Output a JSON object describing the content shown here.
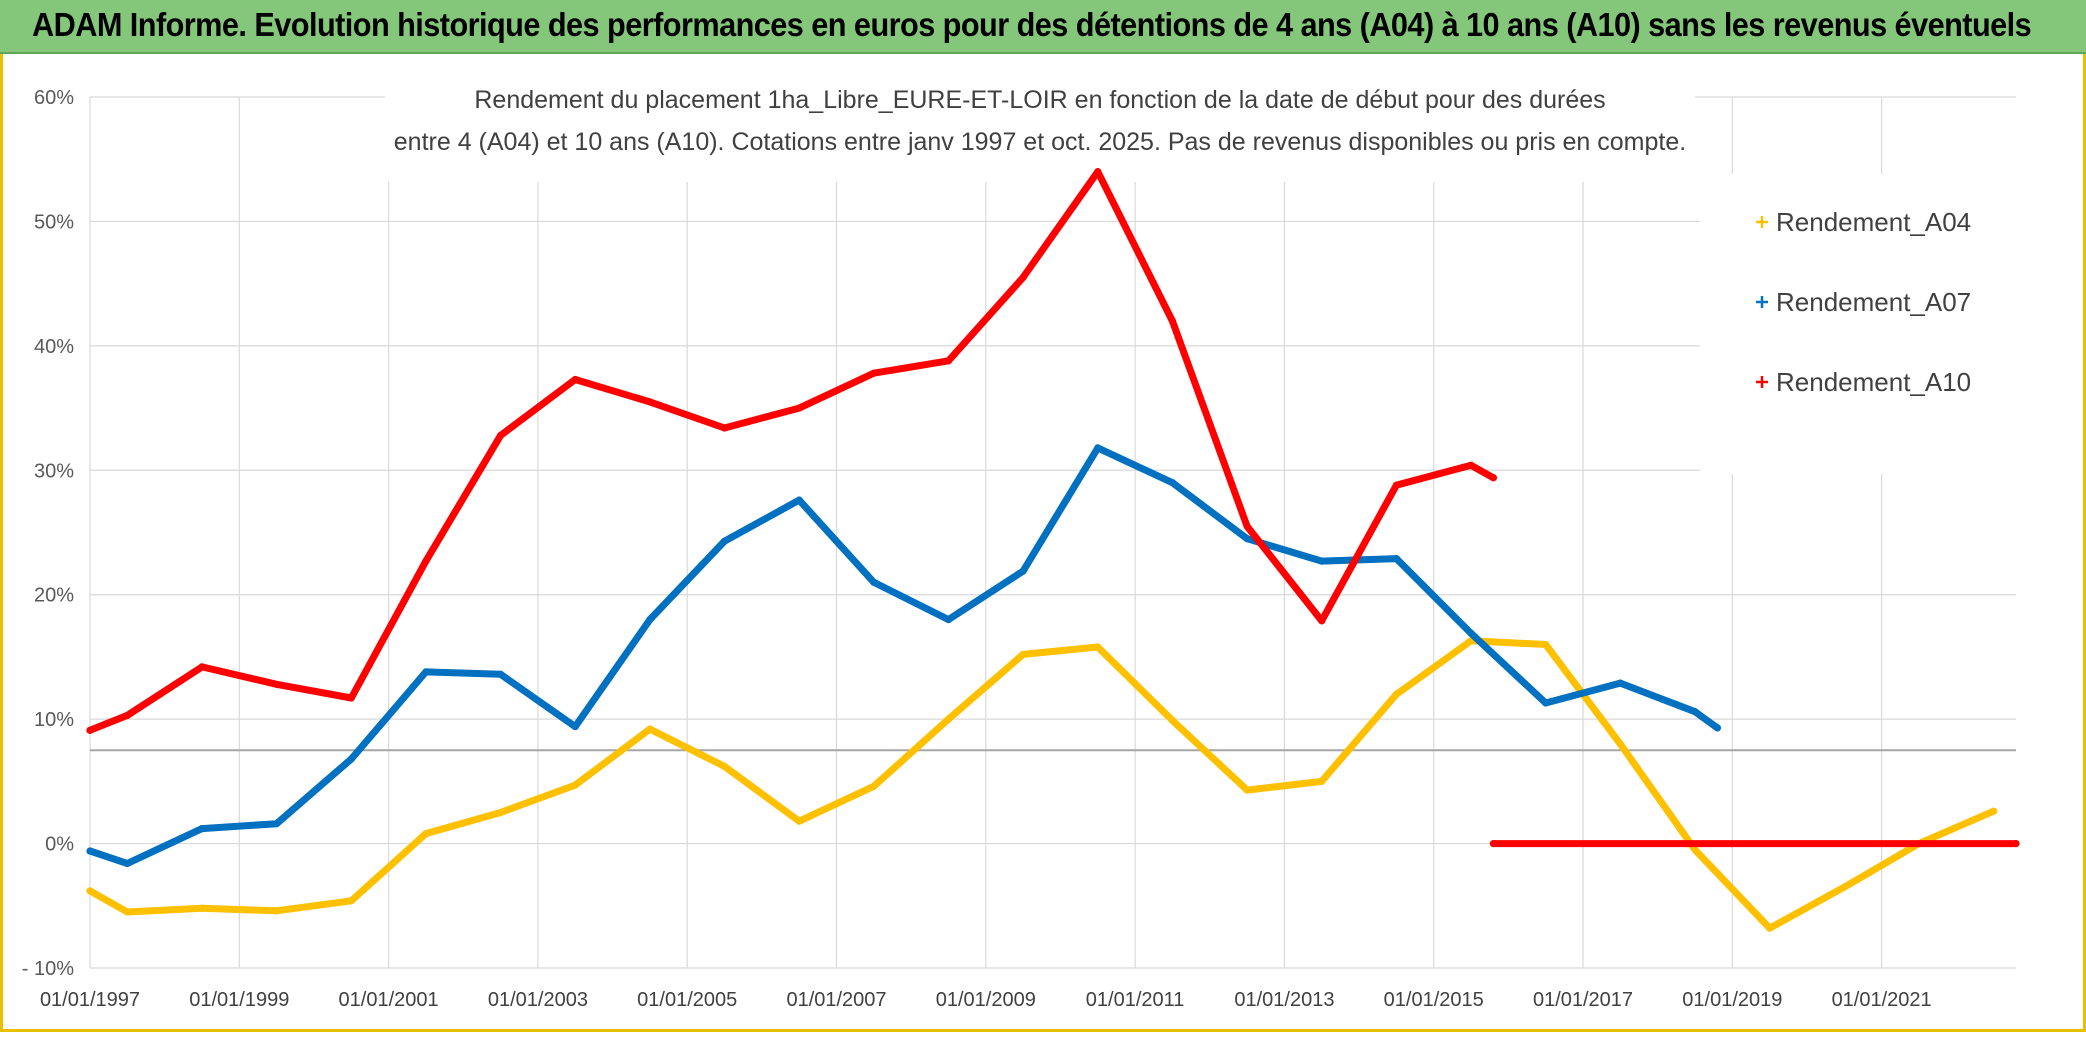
{
  "banner": {
    "title": "ADAM Informe. Evolution historique des performances en euros pour des détentions de 4 ans (A04) à 10 ans (A10) sans les revenus éventuels"
  },
  "colors": {
    "banner": "#84c77b",
    "a04": "#ffc000",
    "a07": "#0070c0",
    "a10": "#ff0000",
    "frame": "#e8c000"
  },
  "chart_data": {
    "type": "line",
    "title_line1": "Rendement du placement 1ha_Libre_EURE-ET-LOIR en fonction de la date de début pour des durées",
    "title_line2": "entre 4 (A04) et 10 ans (A10). Cotations entre janv 1997 et oct. 2025. Pas de revenus disponibles ou pris en compte.",
    "xlabel": "",
    "ylabel": "",
    "x_range": [
      1997.0,
      2022.8
    ],
    "ylim": [
      -10,
      60
    ],
    "yticks": [
      -10,
      0,
      10,
      20,
      30,
      40,
      50,
      60
    ],
    "ytick_labels": [
      "- 10%",
      "0%",
      "10%",
      "20%",
      "30%",
      "40%",
      "50%",
      "60%"
    ],
    "xticks": [
      1997,
      1999,
      2001,
      2003,
      2005,
      2007,
      2009,
      2011,
      2013,
      2015,
      2017,
      2019,
      2021
    ],
    "xtick_labels": [
      "01/01/1997",
      "01/01/1999",
      "01/01/2001",
      "01/01/2003",
      "01/01/2005",
      "01/01/2007",
      "01/01/2009",
      "01/01/2011",
      "01/01/2013",
      "01/01/2015",
      "01/01/2017",
      "01/01/2019",
      "01/01/2021"
    ],
    "reference_line_y": 7.5,
    "grid": true,
    "legend_position": "right",
    "series": [
      {
        "name": "Rendement_A04",
        "color_key": "a04",
        "x": [
          1997.0,
          1997.5,
          1998.5,
          1999.5,
          2000.5,
          2001.5,
          2002.5,
          2003.5,
          2004.5,
          2005.5,
          2006.5,
          2007.5,
          2008.5,
          2009.5,
          2010.5,
          2011.5,
          2012.5,
          2013.5,
          2014.5,
          2015.5,
          2016.5,
          2017.5,
          2018.5,
          2019.5,
          2020.5,
          2021.5,
          2022.5
        ],
        "y": [
          -3.8,
          -5.5,
          -5.2,
          -5.4,
          -4.6,
          0.8,
          2.5,
          4.7,
          9.2,
          6.2,
          1.8,
          4.6,
          10.0,
          15.2,
          15.8,
          9.9,
          4.3,
          5.0,
          12.0,
          16.3,
          16.0,
          8.0,
          -0.5,
          -6.8,
          -3.5,
          0.0,
          2.6
        ]
      },
      {
        "name": "Rendement_A07",
        "color_key": "a07",
        "x": [
          1997.0,
          1997.5,
          1998.5,
          1999.5,
          2000.5,
          2001.5,
          2002.5,
          2003.5,
          2004.5,
          2005.5,
          2006.5,
          2007.5,
          2008.5,
          2009.5,
          2010.5,
          2011.5,
          2012.5,
          2013.5,
          2014.5,
          2015.5,
          2016.5,
          2017.5,
          2018.5,
          2018.8
        ],
        "y": [
          -0.6,
          -1.6,
          1.2,
          1.6,
          6.8,
          13.8,
          13.6,
          9.4,
          18.0,
          24.3,
          27.6,
          21.0,
          18.0,
          21.9,
          31.8,
          29.0,
          24.5,
          22.7,
          22.9,
          16.9,
          11.3,
          12.9,
          10.6,
          9.3
        ]
      },
      {
        "name": "Rendement_A10",
        "color_key": "a10",
        "x": [
          1997.0,
          1997.5,
          1998.5,
          1999.5,
          2000.5,
          2001.5,
          2002.5,
          2003.5,
          2004.5,
          2005.5,
          2006.5,
          2007.5,
          2008.5,
          2009.5,
          2010.5,
          2011.5,
          2012.5,
          2013.5,
          2014.5,
          2015.5,
          2015.8
        ],
        "y": [
          9.1,
          10.3,
          14.2,
          12.8,
          11.7,
          22.7,
          32.8,
          37.3,
          35.5,
          33.4,
          35.0,
          37.8,
          38.8,
          45.5,
          54.0,
          42.0,
          25.5,
          17.9,
          28.8,
          30.4,
          29.4
        ]
      },
      {
        "name": "Rendement_A10_zero_segment",
        "color_key": "a10",
        "in_legend": false,
        "x": [
          2015.8,
          2022.8
        ],
        "y": [
          0,
          0
        ]
      }
    ],
    "legend": [
      "Rendement_A04",
      "Rendement_A07",
      "Rendement_A10"
    ]
  }
}
